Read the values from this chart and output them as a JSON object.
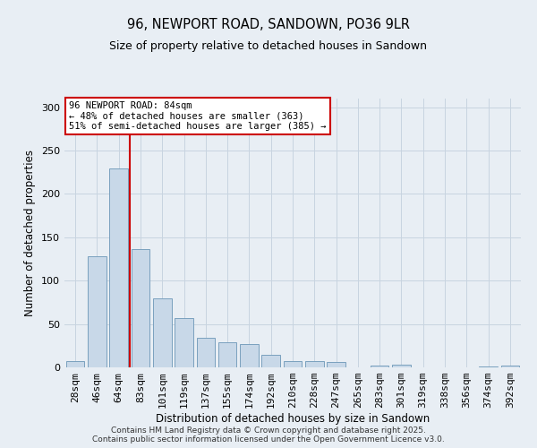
{
  "title_line1": "96, NEWPORT ROAD, SANDOWN, PO36 9LR",
  "title_line2": "Size of property relative to detached houses in Sandown",
  "xlabel": "Distribution of detached houses by size in Sandown",
  "ylabel": "Number of detached properties",
  "bar_labels": [
    "28sqm",
    "46sqm",
    "64sqm",
    "83sqm",
    "101sqm",
    "119sqm",
    "137sqm",
    "155sqm",
    "174sqm",
    "192sqm",
    "210sqm",
    "228sqm",
    "247sqm",
    "265sqm",
    "283sqm",
    "301sqm",
    "319sqm",
    "338sqm",
    "356sqm",
    "374sqm",
    "392sqm"
  ],
  "bar_values": [
    7,
    128,
    229,
    136,
    80,
    57,
    34,
    29,
    27,
    14,
    7,
    7,
    6,
    0,
    2,
    3,
    0,
    0,
    0,
    1,
    2
  ],
  "bar_color": "#c8d8e8",
  "bar_edge_color": "#7aa0be",
  "grid_color": "#c8d4e0",
  "background_color": "#e8eef4",
  "vline_color": "#cc0000",
  "vline_pos": 2.5,
  "annotation_text": "96 NEWPORT ROAD: 84sqm\n← 48% of detached houses are smaller (363)\n51% of semi-detached houses are larger (385) →",
  "annotation_box_color": "#ffffff",
  "annotation_box_edge": "#cc0000",
  "ylim": [
    0,
    310
  ],
  "footnote": "Contains HM Land Registry data © Crown copyright and database right 2025.\nContains public sector information licensed under the Open Government Licence v3.0."
}
